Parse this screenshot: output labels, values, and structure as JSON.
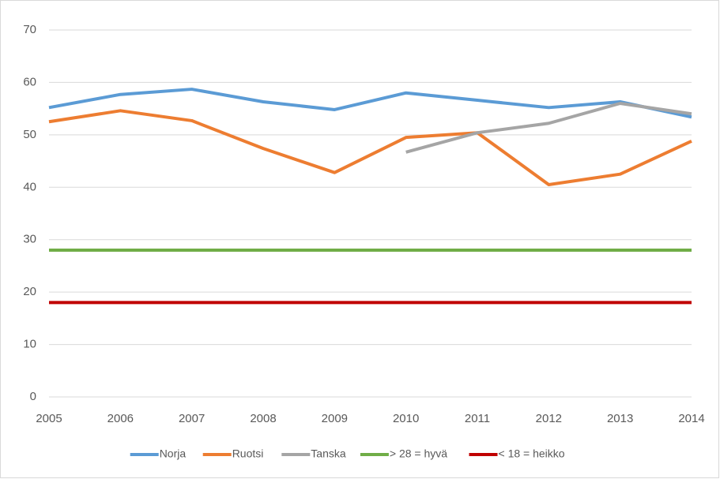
{
  "chart_data": {
    "type": "line",
    "x": [
      2005,
      2006,
      2007,
      2008,
      2009,
      2010,
      2011,
      2012,
      2013,
      2014
    ],
    "xlim": [
      2005,
      2014
    ],
    "xticks": [
      2005,
      2006,
      2007,
      2008,
      2009,
      2010,
      2011,
      2012,
      2013,
      2014
    ],
    "ylim": [
      0,
      70
    ],
    "yticks": [
      0,
      10,
      20,
      30,
      40,
      50,
      60,
      70
    ],
    "grid": true,
    "legend": "bottom",
    "series": [
      {
        "name": "Norja",
        "color": "#5b9bd5",
        "values": [
          55.2,
          57.7,
          58.7,
          56.3,
          54.8,
          58.0,
          56.6,
          55.2,
          56.3,
          53.4
        ]
      },
      {
        "name": "Ruotsi",
        "color": "#ed7d31",
        "values": [
          52.5,
          54.6,
          52.7,
          47.4,
          42.8,
          49.5,
          50.4,
          40.5,
          42.5,
          48.8
        ]
      },
      {
        "name": "Tanska",
        "color": "#a5a5a5",
        "values": [
          null,
          null,
          null,
          null,
          null,
          46.7,
          50.4,
          52.2,
          56.0,
          54.0
        ]
      },
      {
        "name": "> 28 = hyvä",
        "color": "#70ad47",
        "values": [
          28,
          28,
          28,
          28,
          28,
          28,
          28,
          28,
          28,
          28
        ]
      },
      {
        "name": "< 18 = heikko",
        "color": "#c00000",
        "values": [
          18,
          18,
          18,
          18,
          18,
          18,
          18,
          18,
          18,
          18
        ]
      }
    ]
  }
}
